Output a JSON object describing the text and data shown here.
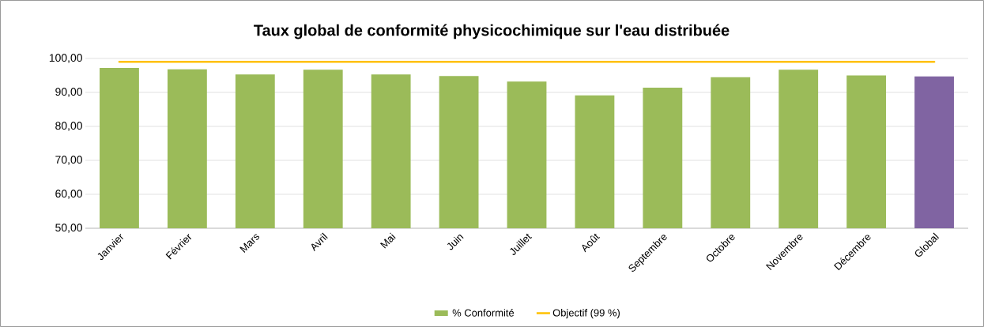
{
  "chart_data": {
    "type": "bar",
    "title": "Taux global de conformité physicochimique sur l'eau distribuée",
    "categories": [
      "Janvier",
      "Février",
      "Mars",
      "Avril",
      "Mai",
      "Juin",
      "Juillet",
      "Août",
      "Septembre",
      "Octobre",
      "Novembre",
      "Décembre",
      "Global"
    ],
    "series": [
      {
        "name": "% Conformité",
        "type": "bar",
        "color": "#9bbb59",
        "colors": [
          "#9bbb59",
          "#9bbb59",
          "#9bbb59",
          "#9bbb59",
          "#9bbb59",
          "#9bbb59",
          "#9bbb59",
          "#9bbb59",
          "#9bbb59",
          "#9bbb59",
          "#9bbb59",
          "#9bbb59",
          "#8064a2"
        ],
        "values": [
          97.2,
          96.8,
          95.3,
          96.7,
          95.3,
          94.8,
          93.2,
          89.1,
          91.4,
          94.5,
          96.7,
          95.0,
          94.7
        ]
      },
      {
        "name": "Objectif (99 %)",
        "type": "line",
        "color": "#ffc000",
        "values": [
          99,
          99,
          99,
          99,
          99,
          99,
          99,
          99,
          99,
          99,
          99,
          99,
          99
        ]
      }
    ],
    "ylim": [
      50,
      100
    ],
    "yticks": [
      {
        "value": 50,
        "label": "50,00"
      },
      {
        "value": 60,
        "label": "60,00"
      },
      {
        "value": 70,
        "label": "70,00"
      },
      {
        "value": 80,
        "label": "80,00"
      },
      {
        "value": 90,
        "label": "90,00"
      },
      {
        "value": 100,
        "label": "100,00"
      }
    ],
    "grid": "y",
    "legend": "bottom"
  }
}
